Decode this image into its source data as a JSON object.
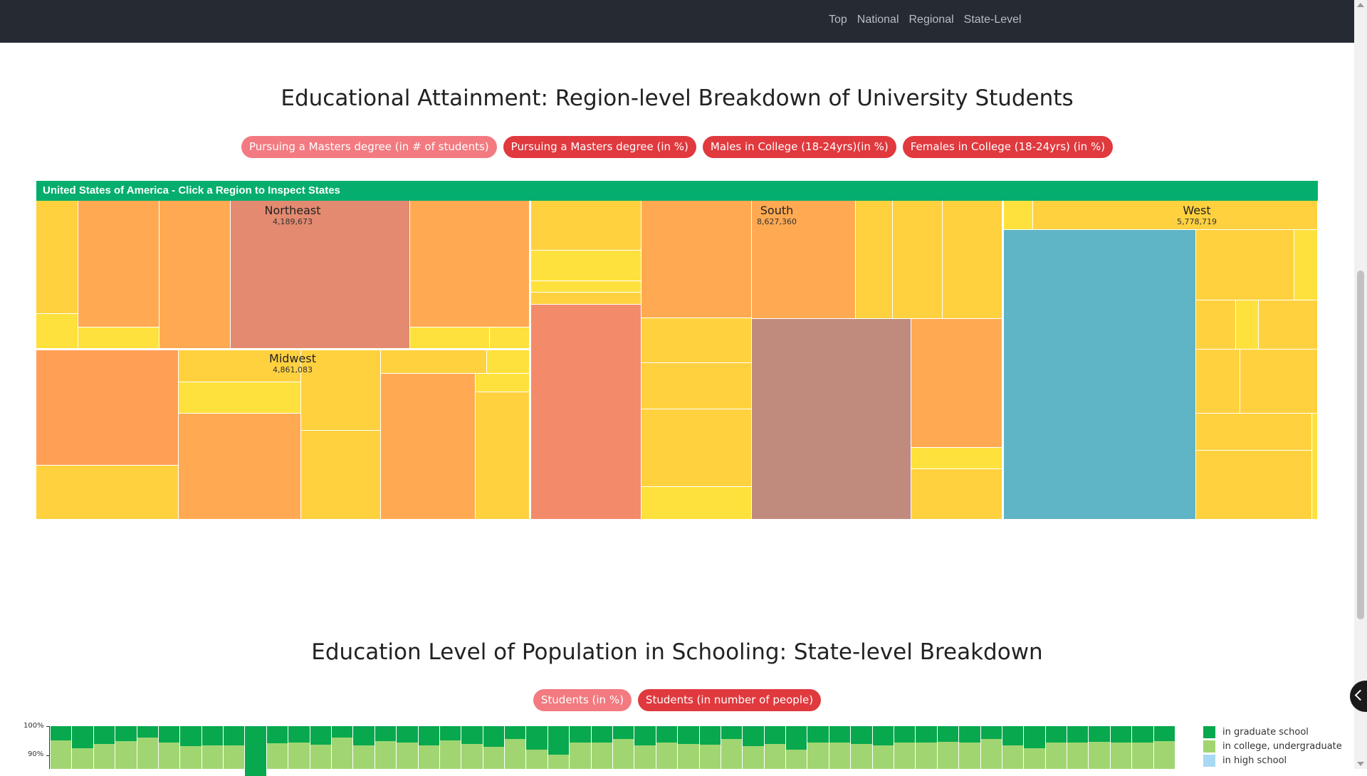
{
  "nav": {
    "links": [
      "Top",
      "National",
      "Regional",
      "State-Level"
    ]
  },
  "treemap_section": {
    "title": "Educational Attainment: Region-level Breakdown of University Students",
    "buttons": [
      {
        "label": "Pursuing a Masters degree (in # of students)",
        "active": true
      },
      {
        "label": "Pursuing a Masters degree (in %)",
        "active": false
      },
      {
        "label": "Males in College (18-24yrs)(in %)",
        "active": false
      },
      {
        "label": "Females in College (18-24yrs) (in %)",
        "active": false
      }
    ],
    "header": "United States of America - Click a Region to Inspect States",
    "regions": [
      {
        "name": "Northeast",
        "value": "4,189,673"
      },
      {
        "name": "Midwest",
        "value": "4,861,083"
      },
      {
        "name": "South",
        "value": "8,627,360"
      },
      {
        "name": "West",
        "value": "5,778,719"
      }
    ]
  },
  "bar_section": {
    "title": "Education Level of Population in Schooling: State-level Breakdown",
    "buttons": [
      {
        "label": "Students (in %)",
        "active": true
      },
      {
        "label": "Students (in number of people)",
        "active": false
      }
    ],
    "y_ticks": [
      "100%",
      "90%"
    ],
    "legend": [
      {
        "label": "in graduate school",
        "color": "#07a84e"
      },
      {
        "label": "in college, undergraduate",
        "color": "#a1d571"
      },
      {
        "label": "in high school",
        "color": "#a8d9f2"
      }
    ]
  },
  "chart_data": {
    "type": "bar",
    "stacked": true,
    "ylim": [
      0,
      100
    ],
    "series": [
      {
        "name": "in graduate school",
        "values": [
          4.8,
          7.5,
          6.0,
          5.0,
          3.8,
          5.5,
          6.8,
          6.5,
          6.5,
          17,
          5.8,
          5.5,
          6.3,
          4.0,
          6.5,
          5.0,
          5.6,
          6.6,
          4.8,
          6.0,
          7.0,
          4.5,
          8.0,
          9.7,
          5.5,
          5.5,
          4.5,
          6.5,
          5.5,
          6.0,
          6.4,
          4.5,
          6.8,
          6.2,
          8.0,
          5.5,
          5.5,
          6.0,
          6.6,
          5.5,
          5.5,
          5.4,
          5.5,
          4.5,
          6.5,
          7.5,
          5.5,
          5.5,
          5.3,
          5.5,
          5.5,
          5.0
        ]
      }
    ]
  }
}
